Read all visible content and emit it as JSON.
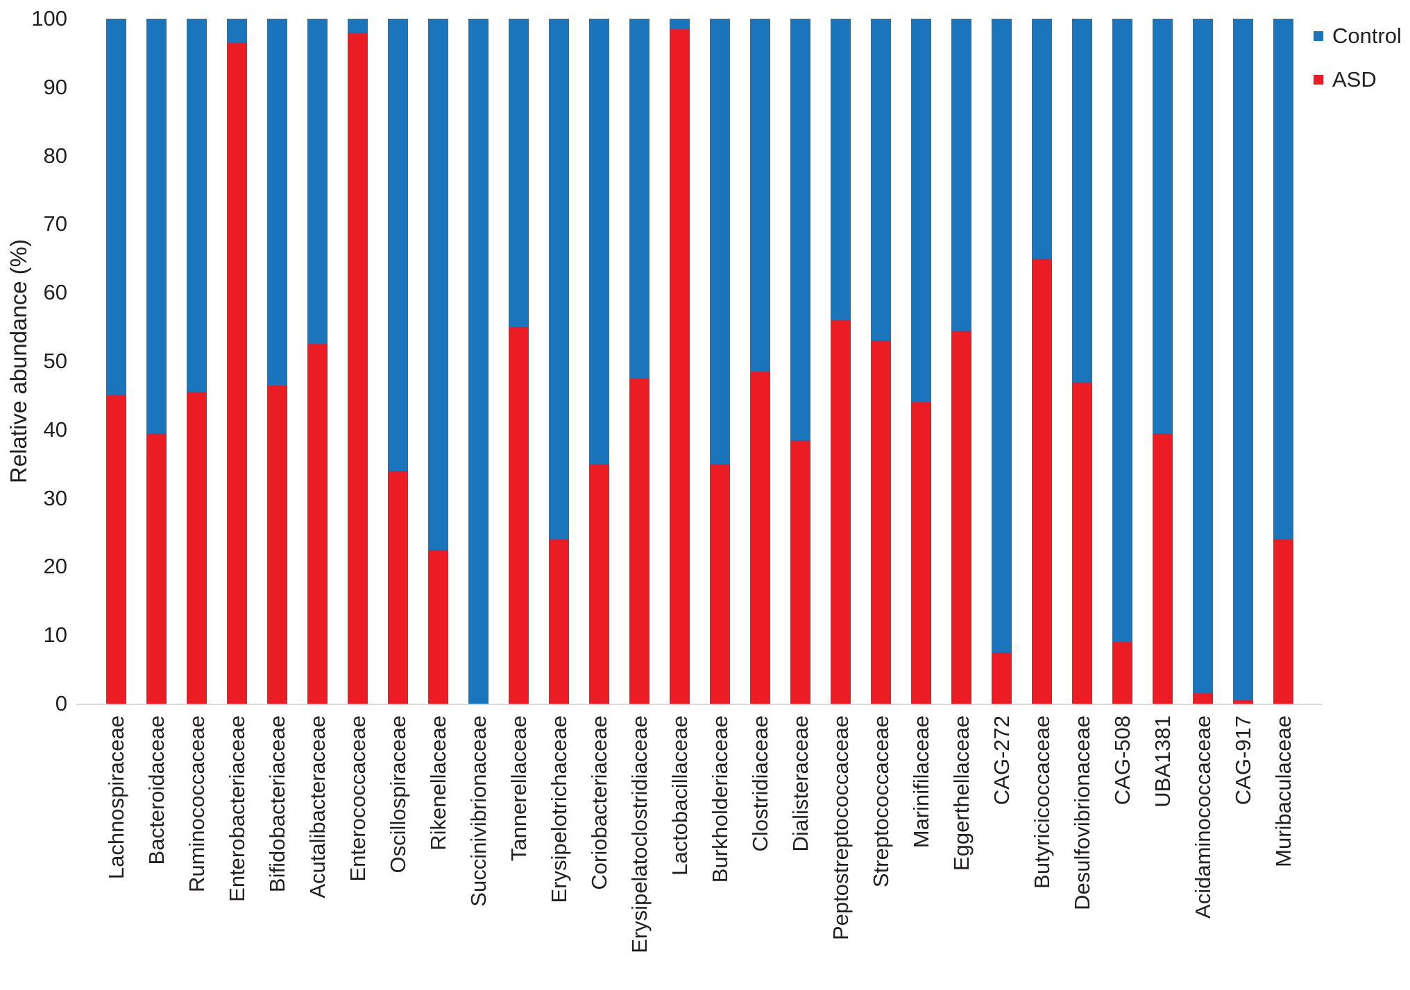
{
  "chart_data": {
    "type": "bar",
    "stacked": true,
    "orientation": "vertical",
    "title": "",
    "xlabel": "",
    "ylabel": "Relative abundance (%)",
    "ylim": [
      0,
      100
    ],
    "yticks": [
      0,
      10,
      20,
      30,
      40,
      50,
      60,
      70,
      80,
      90,
      100
    ],
    "grid": false,
    "legend_position": "top-right",
    "categories": [
      "Lachnospiraceae",
      "Bacteroidaceae",
      "Ruminococcaceae",
      "Enterobacteriaceae",
      "Bifidobacteriaceae",
      "Acutalibacteraceae",
      "Enterococcaceae",
      "Oscillospiraceae",
      "Rikenellaceae",
      "Succinivibrionaceae",
      "Tannerellaceae",
      "Erysipelotrichaceae",
      "Coriobacteriaceae",
      "Erysipelatoclostridiaceae",
      "Lactobacillaceae",
      "Burkholderiaceae",
      "Clostridiaceae",
      "Dialisteraceae",
      "Peptostreptococcaceae",
      "Streptococcaceae",
      "Marinifilaceae",
      "Eggerthellaceae",
      "CAG-272",
      "Butyricicoccaceae",
      "Desulfovibrionaceae",
      "CAG-508",
      "UBA1381",
      "Acidaminococcaceae",
      "CAG-917",
      "Muribaculaceae"
    ],
    "series": [
      {
        "name": "ASD",
        "color": "#EC1C24",
        "stack_order": 0,
        "values": [
          45,
          39.5,
          45.5,
          96.5,
          46.5,
          52.5,
          98,
          34,
          22.5,
          0,
          55,
          24,
          35,
          47.5,
          98.5,
          35,
          48.5,
          38.5,
          56,
          53,
          44,
          54.5,
          7.5,
          65,
          47,
          9,
          39.5,
          1.5,
          0.5,
          24
        ]
      },
      {
        "name": "Control",
        "color": "#1B75BC",
        "stack_order": 1,
        "values": [
          55,
          60.5,
          54.5,
          3.5,
          53.5,
          47.5,
          2,
          66,
          77.5,
          100,
          45,
          76,
          65,
          52.5,
          1.5,
          65,
          51.5,
          61.5,
          44,
          47,
          56,
          45.5,
          92.5,
          35,
          53,
          91,
          60.5,
          98.5,
          99.5,
          76
        ]
      }
    ]
  },
  "legend": {
    "items": [
      {
        "label": "Control",
        "color": "#1B75BC"
      },
      {
        "label": "ASD",
        "color": "#EC1C24"
      }
    ]
  },
  "y_axis": {
    "label": "Relative abundance (%)"
  }
}
